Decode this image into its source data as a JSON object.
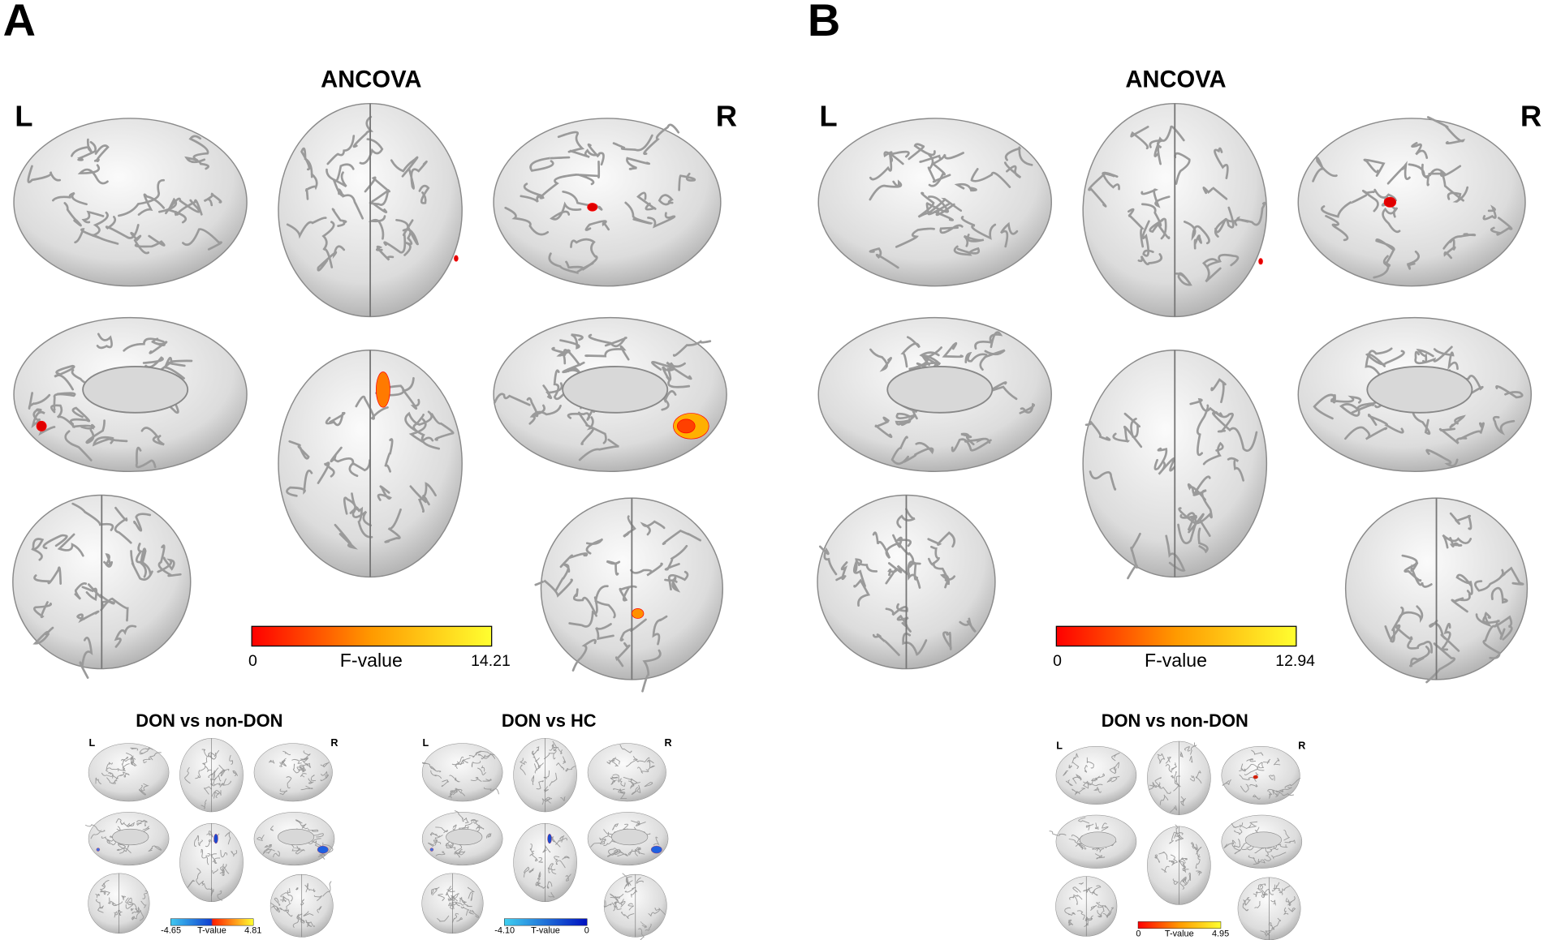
{
  "panels": [
    {
      "label": "A",
      "title": "ANCOVA",
      "left": "L",
      "right": "R",
      "colorbar": {
        "min_label": "0",
        "axis_label": "F-value",
        "max_label": "14.21"
      },
      "insets": [
        {
          "title": "DON vs non-DON",
          "left": "L",
          "right": "R",
          "colorbar": {
            "min_label": "-4.65",
            "axis_label": "T-value",
            "max_label": "4.81"
          }
        },
        {
          "title": "DON vs HC",
          "left": "L",
          "right": "R",
          "colorbar": {
            "min_label": "-4.10",
            "axis_label": "T-value",
            "max_label": "0"
          }
        }
      ]
    },
    {
      "label": "B",
      "title": "ANCOVA",
      "left": "L",
      "right": "R",
      "colorbar": {
        "min_label": "0",
        "axis_label": "F-value",
        "max_label": "12.94"
      },
      "insets": [
        {
          "title": "DON vs non-DON",
          "left": "L",
          "right": "R",
          "colorbar": {
            "min_label": "0",
            "axis_label": "T-value",
            "max_label": "4.95"
          }
        }
      ]
    }
  ]
}
